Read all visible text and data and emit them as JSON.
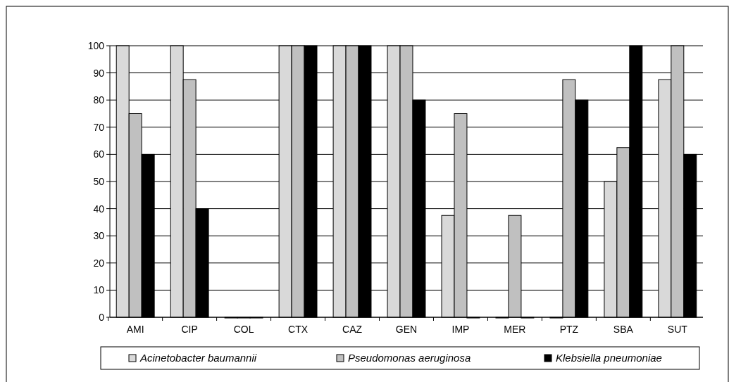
{
  "chart_data": {
    "type": "bar",
    "categories": [
      "AMI",
      "CIP",
      "COL",
      "CTX",
      "CAZ",
      "GEN",
      "IMP",
      "MER",
      "PTZ",
      "SBA",
      "SUT"
    ],
    "series": [
      {
        "name": "Acinetobacter baumannii",
        "color": "#d9d9d9",
        "values": [
          100,
          100,
          0,
          100,
          100,
          100,
          37.5,
          0,
          0,
          50,
          87.5
        ]
      },
      {
        "name": "Pseudomonas aeruginosa",
        "color": "#c0c0c0",
        "values": [
          75,
          87.5,
          0,
          100,
          100,
          100,
          75,
          37.5,
          87.5,
          62.5,
          100
        ]
      },
      {
        "name": "Klebsiella pneumoniae",
        "color": "#000000",
        "values": [
          60,
          40,
          0,
          100,
          100,
          80,
          0,
          0,
          80,
          100,
          60
        ]
      }
    ],
    "ylim": [
      0,
      100
    ],
    "yticks": [
      0,
      10,
      20,
      30,
      40,
      50,
      60,
      70,
      80,
      90,
      100
    ],
    "grid": "y",
    "legend": "bottom"
  }
}
